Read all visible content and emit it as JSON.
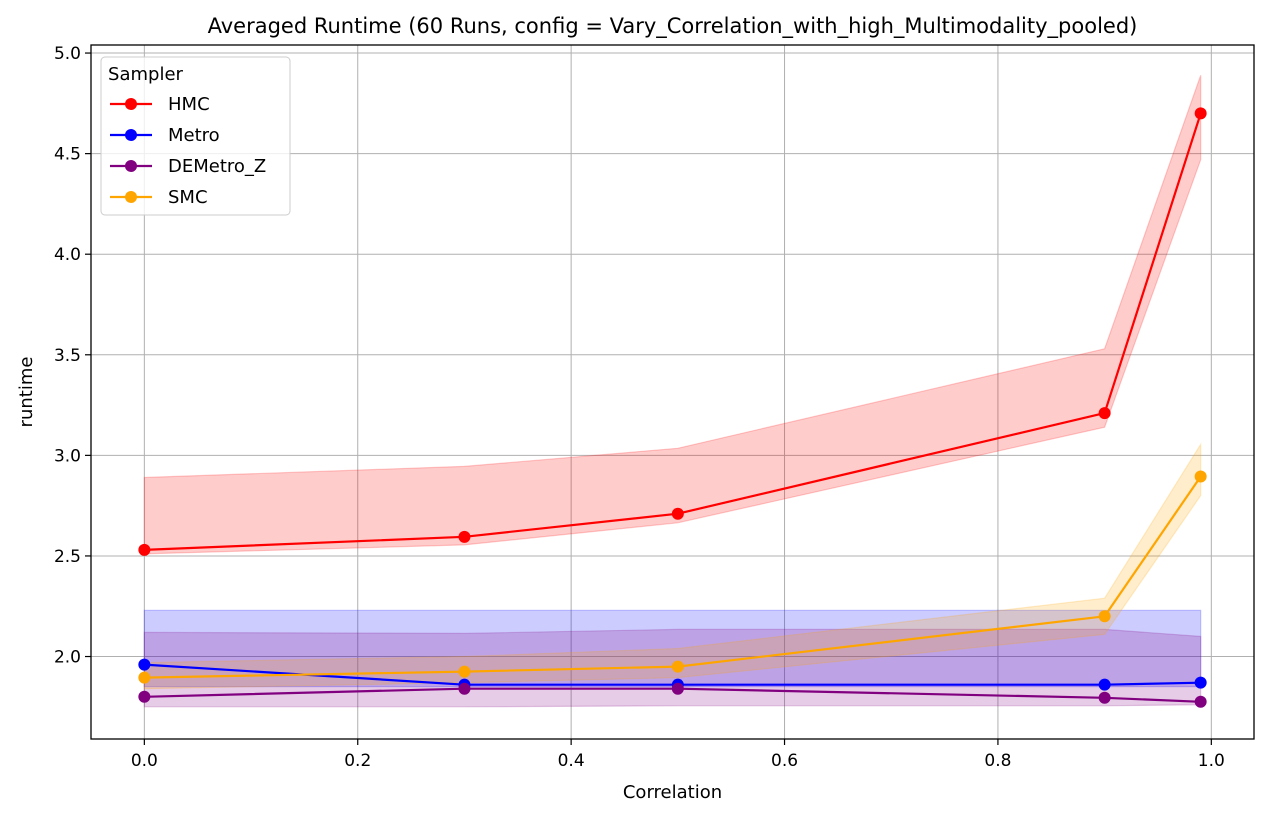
{
  "chart_data": {
    "type": "line",
    "title": "Averaged Runtime (60 Runs, config = Vary_Correlation_with_high_Multimodality_pooled)",
    "xlabel": "Correlation",
    "ylabel": "runtime",
    "xlim": [
      -0.05,
      1.04
    ],
    "ylim": [
      1.59,
      5.04
    ],
    "xticks": [
      "0.0",
      "0.2",
      "0.4",
      "0.6",
      "0.8",
      "1.0"
    ],
    "yticks": [
      "2.0",
      "2.5",
      "3.0",
      "3.5",
      "4.0",
      "4.5",
      "5.0"
    ],
    "grid": true,
    "legend": {
      "title": "Sampler",
      "placement": "top-left"
    },
    "x": [
      0.0,
      0.3,
      0.5,
      0.9,
      0.99
    ],
    "series": [
      {
        "name": "HMC",
        "color": "#ff0000",
        "values": [
          2.53,
          2.595,
          2.71,
          3.21,
          4.7
        ],
        "band_lower": [
          2.51,
          2.555,
          2.665,
          3.14,
          4.47
        ],
        "band_upper": [
          2.89,
          2.945,
          3.035,
          3.53,
          4.89
        ]
      },
      {
        "name": "Metro",
        "color": "#0000ff",
        "values": [
          1.96,
          1.86,
          1.86,
          1.86,
          1.87
        ],
        "band_lower": [
          1.85,
          1.85,
          1.85,
          1.85,
          1.85
        ],
        "band_upper": [
          2.23,
          2.23,
          2.23,
          2.23,
          2.23
        ]
      },
      {
        "name": "DEMetro_Z",
        "color": "#800080",
        "values": [
          1.8,
          1.84,
          1.84,
          1.795,
          1.775
        ],
        "band_lower": [
          1.75,
          1.75,
          1.755,
          1.755,
          1.76
        ],
        "band_upper": [
          2.12,
          2.115,
          2.135,
          2.135,
          2.1
        ]
      },
      {
        "name": "SMC",
        "color": "#ffa500",
        "values": [
          1.895,
          1.925,
          1.95,
          2.2,
          2.895
        ],
        "band_lower": [
          1.84,
          1.87,
          1.895,
          2.11,
          2.8
        ],
        "band_upper": [
          1.97,
          2.0,
          2.04,
          2.29,
          3.055
        ]
      }
    ]
  }
}
